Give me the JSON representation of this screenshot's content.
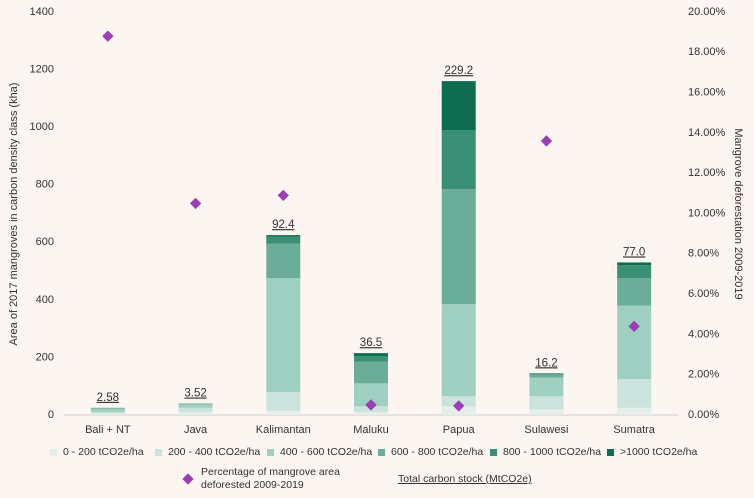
{
  "chart_data": {
    "type": "bar",
    "stacked": true,
    "y_label": "Area of 2017 mangroves in carbon density class (kha)",
    "y2_label": "Mangrove deforestation 2009-2019",
    "categories": [
      "Bali + NT",
      "Java",
      "Kalimantan",
      "Maluku",
      "Papua",
      "Sulawesi",
      "Sumatra"
    ],
    "series": [
      {
        "name": "0 - 200 tCO2e/ha",
        "color": "#e4eeeb",
        "values": [
          5,
          10,
          15,
          10,
          30,
          20,
          25
        ]
      },
      {
        "name": "200 - 400 tCO2e/ha",
        "color": "#cbe3dc",
        "values": [
          5,
          15,
          65,
          20,
          35,
          45,
          100
        ]
      },
      {
        "name": "400 - 600 tCO2e/ha",
        "color": "#9fcfc0",
        "values": [
          12,
          12,
          395,
          80,
          320,
          65,
          255
        ]
      },
      {
        "name": "600 - 800 tCO2e/ha",
        "color": "#6cad99",
        "values": [
          3,
          3,
          120,
          75,
          400,
          10,
          95
        ]
      },
      {
        "name": "800 - 1000 tCO2e/ha",
        "color": "#3b8f74",
        "values": [
          0,
          0,
          25,
          20,
          205,
          5,
          45
        ]
      },
      {
        "name": ">1000 tCO2e/ha",
        "color": "#0d6d4e",
        "values": [
          0,
          0,
          5,
          10,
          170,
          0,
          10
        ]
      },
      {
        "name": "Percentage of mangrove area deforested 2009-2019",
        "type": "scatter",
        "axis": "y2",
        "color": "#9b3fb5",
        "values": [
          18.8,
          10.5,
          10.9,
          0.5,
          0.45,
          13.6,
          4.4
        ]
      }
    ],
    "totals": {
      "name": "Total carbon stock (MtCO2e)",
      "values": [
        2.58,
        3.52,
        92.4,
        36.5,
        229.2,
        16.2,
        77
      ],
      "value_labels": [
        "2.58",
        "3.52",
        "92.4",
        "36.5",
        "229.2",
        "16.2",
        "77.0"
      ]
    },
    "ylim": [
      0,
      1400
    ],
    "yticks": [
      0,
      200,
      400,
      600,
      800,
      1000,
      1200,
      1400
    ],
    "y2lim": [
      0,
      20
    ],
    "y2ticks": [
      {
        "value": 0,
        "label": "0.00%"
      },
      {
        "value": 2,
        "label": "2.00%"
      },
      {
        "value": 4,
        "label": "4.00%"
      },
      {
        "value": 6,
        "label": "6.00%"
      },
      {
        "value": 8,
        "label": "8.00%"
      },
      {
        "value": 10,
        "label": "10.00%"
      },
      {
        "value": 12,
        "label": "12.00%"
      },
      {
        "value": 14,
        "label": "14.00%"
      },
      {
        "value": 16,
        "label": "16.00%"
      },
      {
        "value": 18,
        "label": "18.00%"
      },
      {
        "value": 20,
        "label": "20.00%"
      }
    ],
    "grid": false
  }
}
